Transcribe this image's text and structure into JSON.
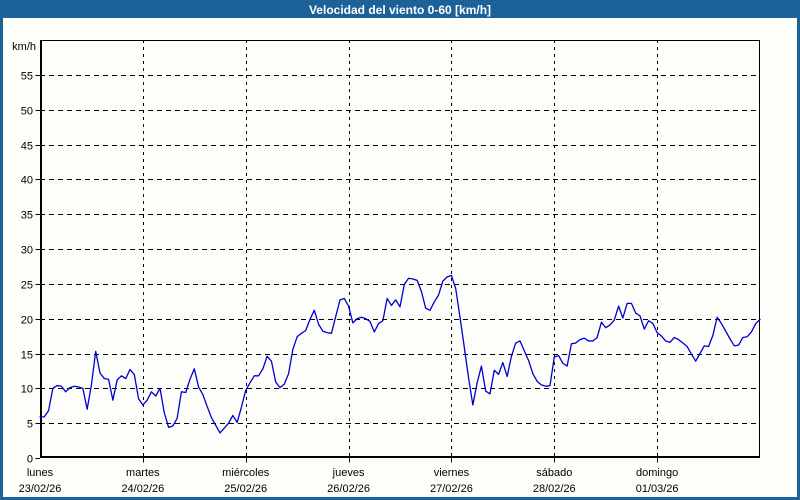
{
  "title": "Velocidad del viento 0-60 [km/h]",
  "colors": {
    "frame": "#1B6298",
    "titlebar_bg": "#1C6298",
    "titlebar_text": "#FFFFFF",
    "background": "#FDFDFA",
    "grid": "#000000",
    "axis": "#000000",
    "line": "#0000CD",
    "label_text": "#000000"
  },
  "chart_data": {
    "type": "line",
    "title": "Velocidad del viento 0-60 [km/h]",
    "unit_label": "km/h",
    "ylabel": "km/h",
    "ylim": [
      0,
      60
    ],
    "yticks": [
      0,
      5,
      10,
      15,
      20,
      25,
      30,
      35,
      40,
      45,
      50,
      55
    ],
    "grid": "dashed",
    "legend": "none",
    "x_unit": "hours",
    "samples_per_day": 24,
    "days": [
      {
        "name": "lunes",
        "date": "23/02/26"
      },
      {
        "name": "martes",
        "date": "24/02/26"
      },
      {
        "name": "miércoles",
        "date": "25/02/26"
      },
      {
        "name": "jueves",
        "date": "26/02/26"
      },
      {
        "name": "viernes",
        "date": "27/02/26"
      },
      {
        "name": "sábado",
        "date": "28/02/26"
      },
      {
        "name": "domingo",
        "date": "01/03/26"
      }
    ],
    "values": [
      5.9,
      5.9,
      6.8,
      10.0,
      10.4,
      10.3,
      9.5,
      10.1,
      10.3,
      10.2,
      10.0,
      7.0,
      10.5,
      15.3,
      12.2,
      11.4,
      11.3,
      8.3,
      11.2,
      11.8,
      11.4,
      12.7,
      12.0,
      8.5,
      7.6,
      8.3,
      9.5,
      8.9,
      10.0,
      6.5,
      4.4,
      4.6,
      5.7,
      9.5,
      9.4,
      11.3,
      12.8,
      10.2,
      9.1,
      7.4,
      5.8,
      4.7,
      3.6,
      4.3,
      5.0,
      6.1,
      5.1,
      7.3,
      9.7,
      10.8,
      11.8,
      11.8,
      12.8,
      14.6,
      13.9,
      10.9,
      10.1,
      10.6,
      12.1,
      15.6,
      17.4,
      17.9,
      18.3,
      19.9,
      21.2,
      19.2,
      18.2,
      18.0,
      17.9,
      20.3,
      22.7,
      22.9,
      21.8,
      19.4,
      20.0,
      20.2,
      20.0,
      19.6,
      18.1,
      19.3,
      19.7,
      22.9,
      21.9,
      22.7,
      21.7,
      24.9,
      25.8,
      25.7,
      25.5,
      23.9,
      21.5,
      21.2,
      22.4,
      23.4,
      25.4,
      26.0,
      26.2,
      24.3,
      20.2,
      15.9,
      11.5,
      7.6,
      10.8,
      13.2,
      9.6,
      9.2,
      12.6,
      12.0,
      13.7,
      11.7,
      14.6,
      16.5,
      16.8,
      15.4,
      14.0,
      12.1,
      11.0,
      10.5,
      10.3,
      10.4,
      14.5,
      14.7,
      13.6,
      13.2,
      16.4,
      16.5,
      17.0,
      17.2,
      16.8,
      16.8,
      17.3,
      19.5,
      18.7,
      19.1,
      19.8,
      21.8,
      20.1,
      22.2,
      22.2,
      20.8,
      20.4,
      18.5,
      19.7,
      19.3,
      18.0,
      17.5,
      16.8,
      16.6,
      17.3,
      17.0,
      16.5,
      16.0,
      14.9,
      13.9,
      15.0,
      16.1,
      16.0,
      17.6,
      20.2,
      19.3,
      18.2,
      17.1,
      16.1,
      16.2,
      17.3,
      17.4,
      18.1,
      19.3,
      19.9
    ]
  }
}
